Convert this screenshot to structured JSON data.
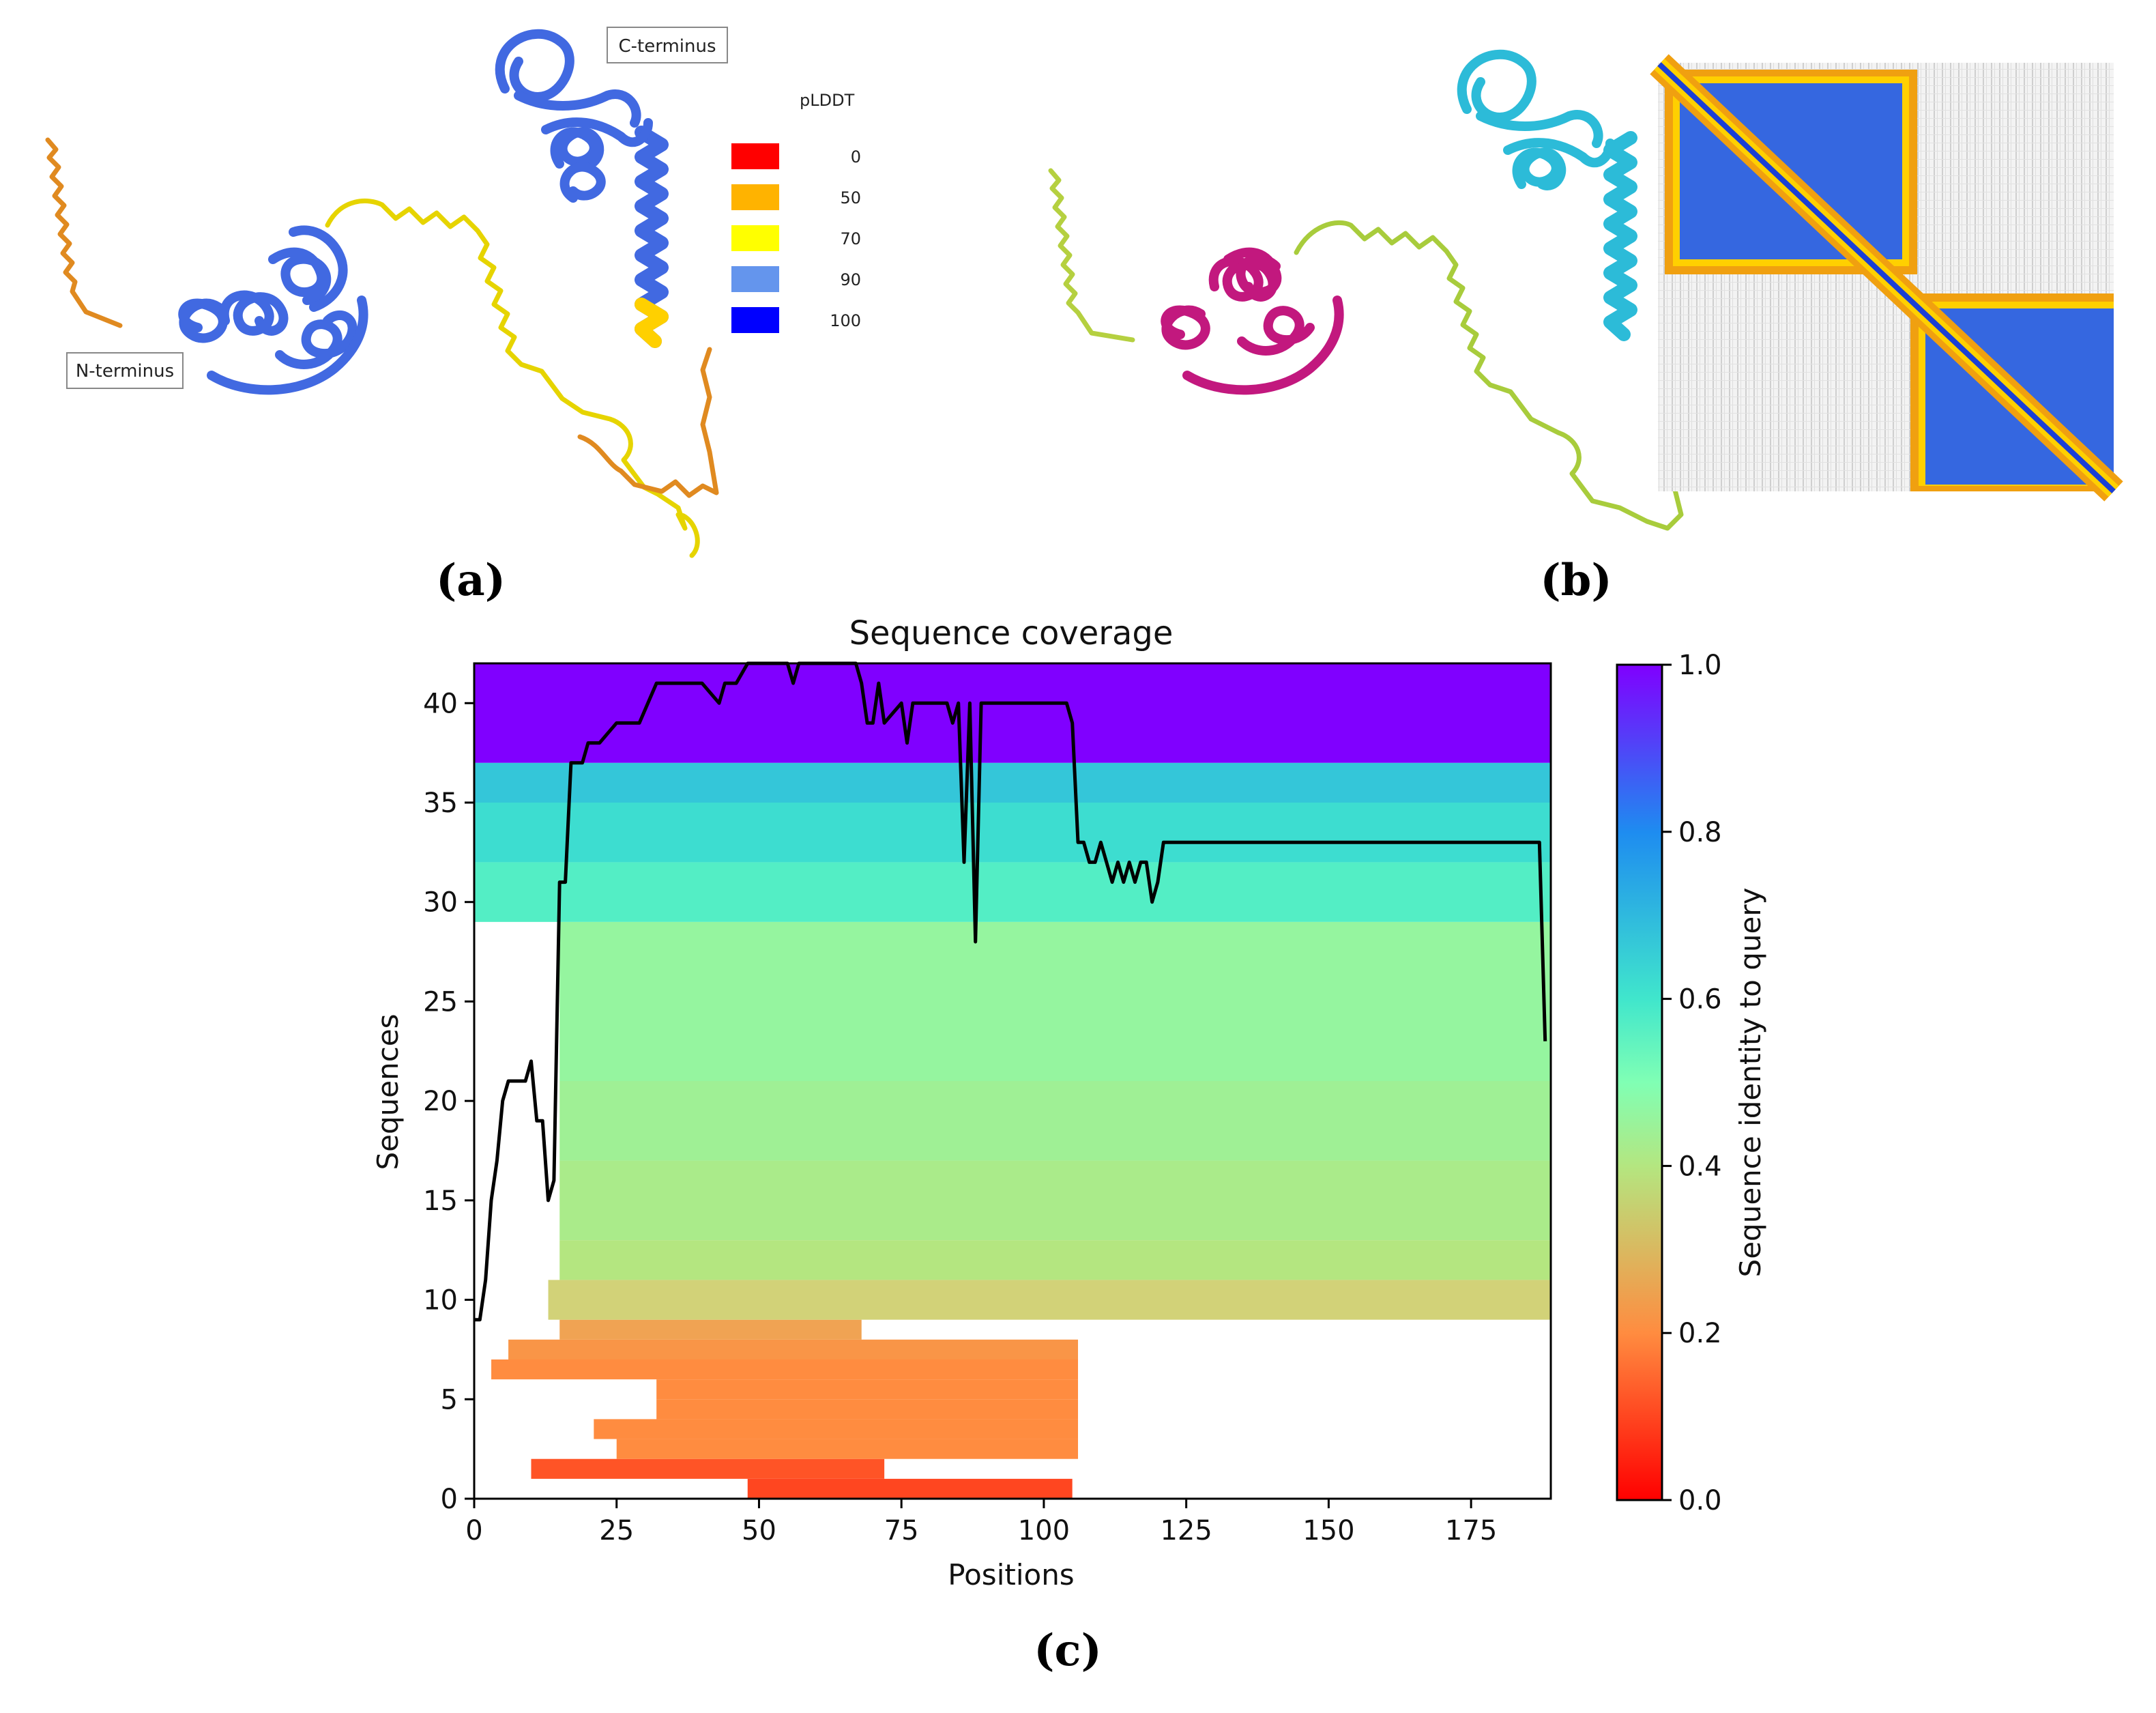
{
  "panel_a": {
    "letter": "(a)",
    "n_terminus_label": "N-terminus",
    "c_terminus_label": "C-terminus",
    "legend_title": "pLDDT",
    "legend": [
      {
        "value": "0",
        "color": "#ff0000"
      },
      {
        "value": "50",
        "color": "#ffb300"
      },
      {
        "value": "70",
        "color": "#ffff00"
      },
      {
        "value": "90",
        "color": "#6495ed"
      },
      {
        "value": "100",
        "color": "#0000ff"
      }
    ]
  },
  "panel_b": {
    "letter": "(b)",
    "domain1_color": "#c2187e",
    "domain2_color": "#2cbbd8",
    "linker_color": "#a8cc3c"
  },
  "panel_c": {
    "letter": "(c)"
  },
  "chart_data": {
    "type": "heatmap",
    "title": "Sequence coverage",
    "xlabel": "Positions",
    "ylabel": "Sequences",
    "colorbar_label": "Sequence identity to query",
    "xlim": [
      0,
      189
    ],
    "ylim": [
      0,
      42
    ],
    "xticks": [
      "0",
      "25",
      "50",
      "75",
      "100",
      "125",
      "150",
      "175"
    ],
    "yticks": [
      "0",
      "5",
      "10",
      "15",
      "20",
      "25",
      "30",
      "35",
      "40"
    ],
    "colorbar_ticks": [
      "0.0",
      "0.2",
      "0.4",
      "0.6",
      "0.8",
      "1.0"
    ],
    "coverage_rows": [
      {
        "y0": 0,
        "y1": 1,
        "x0": 48,
        "x1": 105,
        "identity": 0.1
      },
      {
        "y0": 1,
        "y1": 2,
        "x0": 10,
        "x1": 72,
        "identity": 0.12
      },
      {
        "y0": 2,
        "y1": 3,
        "x0": 25,
        "x1": 106,
        "identity": 0.2
      },
      {
        "y0": 3,
        "y1": 4,
        "x0": 21,
        "x1": 106,
        "identity": 0.2
      },
      {
        "y0": 4,
        "y1": 5,
        "x0": 32,
        "x1": 106,
        "identity": 0.2
      },
      {
        "y0": 5,
        "y1": 6,
        "x0": 32,
        "x1": 106,
        "identity": 0.2
      },
      {
        "y0": 6,
        "y1": 7,
        "x0": 3,
        "x1": 106,
        "identity": 0.2
      },
      {
        "y0": 7,
        "y1": 8,
        "x0": 6,
        "x1": 106,
        "identity": 0.22
      },
      {
        "y0": 8,
        "y1": 9,
        "x0": 15,
        "x1": 68,
        "identity": 0.25
      },
      {
        "y0": 9,
        "y1": 11,
        "x0": 13,
        "x1": 189,
        "identity": 0.35
      },
      {
        "y0": 11,
        "y1": 13,
        "x0": 15,
        "x1": 189,
        "identity": 0.4
      },
      {
        "y0": 13,
        "y1": 17,
        "x0": 15,
        "x1": 189,
        "identity": 0.42
      },
      {
        "y0": 17,
        "y1": 21,
        "x0": 15,
        "x1": 189,
        "identity": 0.44
      },
      {
        "y0": 21,
        "y1": 29,
        "x0": 15,
        "x1": 189,
        "identity": 0.46
      },
      {
        "y0": 29,
        "y1": 32,
        "x0": 0,
        "x1": 189,
        "identity": 0.57
      },
      {
        "y0": 32,
        "y1": 35,
        "x0": 0,
        "x1": 189,
        "identity": 0.62
      },
      {
        "y0": 35,
        "y1": 37,
        "x0": 0,
        "x1": 189,
        "identity": 0.67
      },
      {
        "y0": 37,
        "y1": 42,
        "x0": 0,
        "x1": 189,
        "identity": 1.0
      }
    ],
    "coverage_line": {
      "x": [
        0,
        1,
        2,
        3,
        4,
        5,
        6,
        8,
        9,
        10,
        11,
        12,
        13,
        14,
        15,
        16,
        17,
        19,
        20,
        22,
        25,
        29,
        32,
        40,
        43,
        44,
        46,
        48,
        55,
        56,
        57,
        67,
        68,
        69,
        70,
        71,
        72,
        75,
        76,
        77,
        83,
        84,
        85,
        86,
        87,
        88,
        89,
        90,
        104,
        105,
        106,
        107,
        108,
        109,
        110,
        111,
        112,
        113,
        114,
        115,
        116,
        117,
        118,
        119,
        120,
        121,
        125,
        150,
        187,
        188
      ],
      "y": [
        9,
        9,
        11,
        15,
        17,
        20,
        21,
        21,
        21,
        22,
        19,
        19,
        15,
        16,
        31,
        31,
        37,
        37,
        38,
        38,
        39,
        39,
        41,
        41,
        40,
        41,
        41,
        42,
        42,
        41,
        42,
        42,
        41,
        39,
        39,
        41,
        39,
        40,
        38,
        40,
        40,
        39,
        40,
        32,
        40,
        28,
        40,
        40,
        40,
        39,
        33,
        33,
        32,
        32,
        33,
        32,
        31,
        32,
        31,
        32,
        31,
        32,
        32,
        30,
        31,
        33,
        33,
        33,
        33,
        23
      ]
    }
  }
}
